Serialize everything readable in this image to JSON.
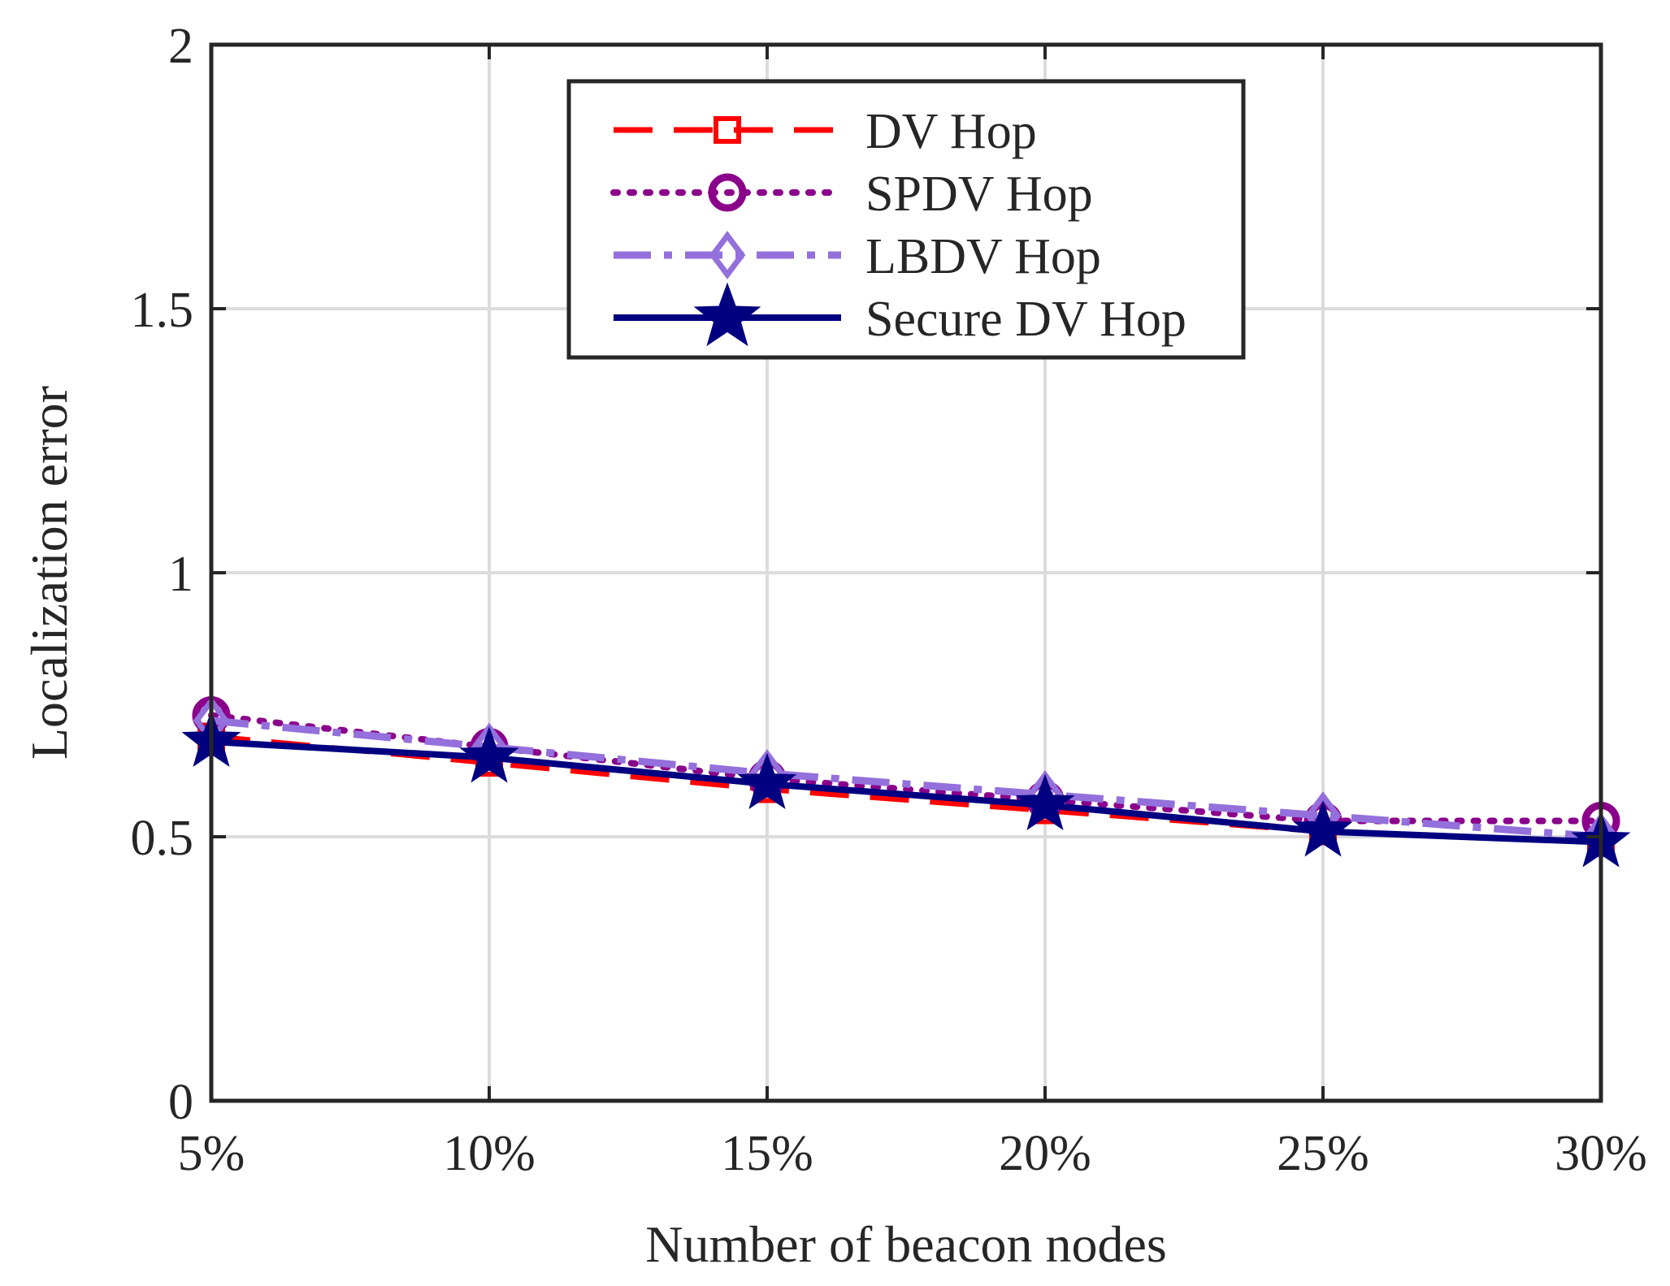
{
  "chart_data": {
    "type": "line",
    "title": "",
    "xlabel": "Number of beacon nodes",
    "ylabel": "Localization error",
    "categories": [
      "5%",
      "10%",
      "15%",
      "20%",
      "25%",
      "30%"
    ],
    "ylim": [
      0,
      2
    ],
    "yticks": [
      0,
      0.5,
      1,
      1.5,
      2
    ],
    "ytick_labels": [
      "0",
      "0.5",
      "1",
      "1.5",
      "2"
    ],
    "grid": true,
    "legend_position": "top-center",
    "series": [
      {
        "name": "DV Hop",
        "color": "#ff0000",
        "line_style": "dashed",
        "marker": "square",
        "values": [
          0.69,
          0.64,
          0.59,
          0.55,
          0.51,
          0.49
        ]
      },
      {
        "name": "SPDV Hop",
        "color": "#8b008b",
        "line_style": "dotted",
        "marker": "circle",
        "values": [
          0.73,
          0.67,
          0.61,
          0.57,
          0.53,
          0.53
        ]
      },
      {
        "name": "LBDV Hop",
        "color": "#9370db",
        "line_style": "dash-dot",
        "marker": "diamond",
        "values": [
          0.72,
          0.67,
          0.62,
          0.58,
          0.54,
          0.5
        ]
      },
      {
        "name": "Secure DV Hop",
        "color": "#000080",
        "line_style": "solid",
        "marker": "star",
        "values": [
          0.68,
          0.65,
          0.6,
          0.56,
          0.51,
          0.49
        ]
      }
    ]
  }
}
